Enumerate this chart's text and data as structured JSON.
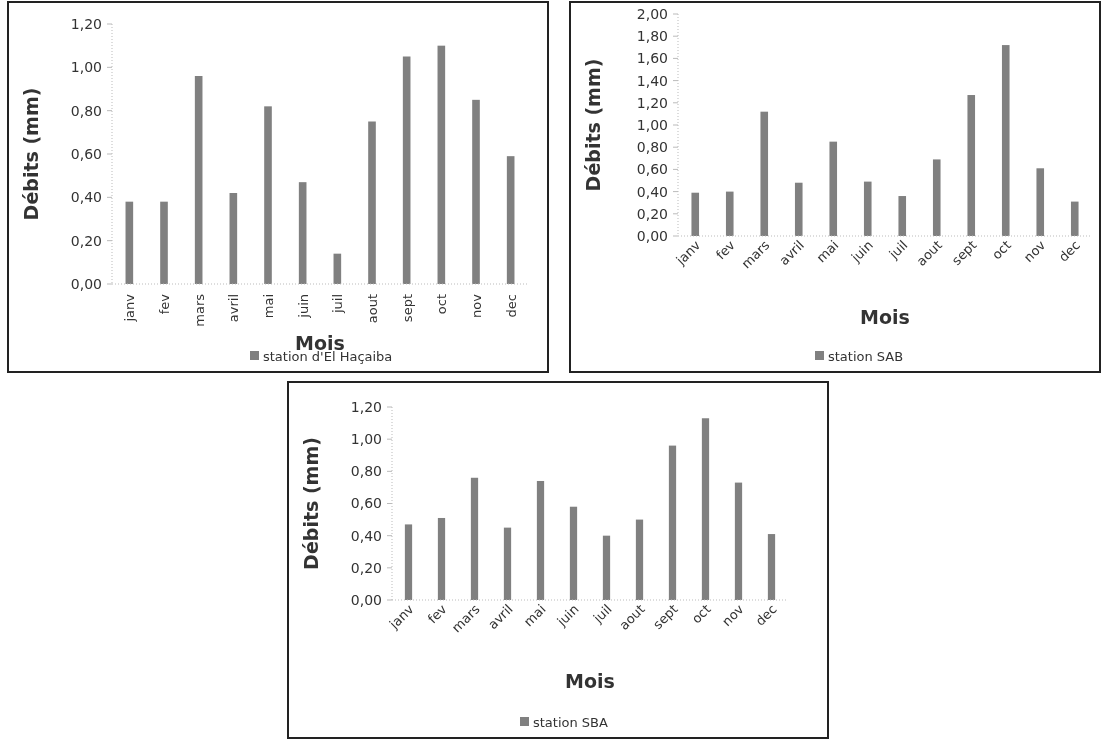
{
  "chart_data": [
    {
      "type": "bar",
      "xlabel": "Mois",
      "ylabel": "Débits  (mm)",
      "categories": [
        "janv",
        "fev",
        "mars",
        "avril",
        "mai",
        "juin",
        "juil",
        "aout",
        "sept",
        "oct",
        "nov",
        "dec"
      ],
      "series": [
        {
          "name": "station d'El Haçaiba",
          "color": "#808080",
          "values": [
            0.38,
            0.38,
            0.96,
            0.42,
            0.82,
            0.47,
            0.14,
            0.75,
            1.05,
            1.1,
            0.85,
            0.59
          ]
        }
      ],
      "ylim": [
        0,
        1.2
      ],
      "yticks": [
        {
          "value": 0,
          "label": "0,00"
        },
        {
          "value": 0.2,
          "label": "0,20"
        },
        {
          "value": 0.4,
          "label": "0,40"
        },
        {
          "value": 0.6,
          "label": "0,60"
        },
        {
          "value": 0.8,
          "label": "0,80"
        },
        {
          "value": 1,
          "label": "1,00"
        },
        {
          "value": 1.2,
          "label": "1,20"
        }
      ],
      "legend": "bottom"
    },
    {
      "type": "bar",
      "xlabel": "Mois",
      "ylabel": "Débits  (mm)",
      "categories": [
        "janv",
        "fev",
        "mars",
        "avril",
        "mai",
        "juin",
        "juil",
        "aout",
        "sept",
        "oct",
        "nov",
        "dec"
      ],
      "series": [
        {
          "name": "station SAB",
          "color": "#808080",
          "values": [
            0.39,
            0.4,
            1.12,
            0.48,
            0.85,
            0.49,
            0.36,
            0.69,
            1.27,
            1.72,
            0.61,
            0.31
          ]
        }
      ],
      "ylim": [
        0,
        2
      ],
      "yticks": [
        {
          "value": 0,
          "label": "0,00"
        },
        {
          "value": 0.2,
          "label": "0,20"
        },
        {
          "value": 0.4,
          "label": "0,40"
        },
        {
          "value": 0.6,
          "label": "0,60"
        },
        {
          "value": 0.8,
          "label": "0,80"
        },
        {
          "value": 1,
          "label": "1,00"
        },
        {
          "value": 1.2,
          "label": "1,20"
        },
        {
          "value": 1.4,
          "label": "1,40"
        },
        {
          "value": 1.6,
          "label": "1,60"
        },
        {
          "value": 1.8,
          "label": "1,80"
        },
        {
          "value": 2,
          "label": "2,00"
        }
      ],
      "legend": "bottom"
    },
    {
      "type": "bar",
      "xlabel": "Mois",
      "ylabel": "Débits  (mm)",
      "categories": [
        "janv",
        "fev",
        "mars",
        "avril",
        "mai",
        "juin",
        "juil",
        "aout",
        "sept",
        "oct",
        "nov",
        "dec"
      ],
      "series": [
        {
          "name": "station SBA",
          "color": "#808080",
          "values": [
            0.47,
            0.51,
            0.76,
            0.45,
            0.74,
            0.58,
            0.4,
            0.5,
            0.96,
            1.13,
            0.73,
            0.41
          ]
        }
      ],
      "ylim": [
        0,
        1.2
      ],
      "yticks": [
        {
          "value": 0,
          "label": "0,00"
        },
        {
          "value": 0.2,
          "label": "0,20"
        },
        {
          "value": 0.4,
          "label": "0,40"
        },
        {
          "value": 0.6,
          "label": "0,60"
        },
        {
          "value": 0.8,
          "label": "0,80"
        },
        {
          "value": 1,
          "label": "1,00"
        },
        {
          "value": 1.2,
          "label": "1,20"
        }
      ],
      "legend": "bottom"
    }
  ]
}
